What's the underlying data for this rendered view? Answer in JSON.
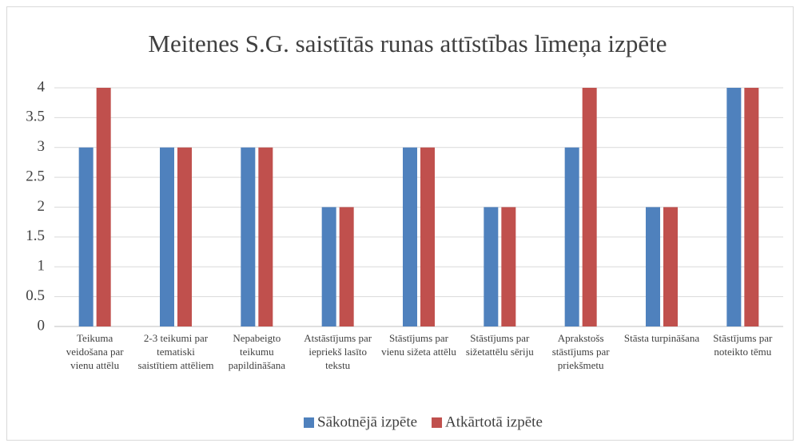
{
  "chart_data": {
    "type": "bar",
    "title": "Meitenes S.G. saistītās runas attīstības līmeņa izpēte",
    "categories": [
      "Teikuma veidošana par vienu attēlu",
      "2-3 teikumi par tematiski saistītiem attēliem",
      "Nepabeigto teikumu papildināšana",
      "Atstāstījums par iepriekš lasīto tekstu",
      "Stāstījums par vienu sižeta attēlu",
      "Stāstījums par sižetattēlu sēriju",
      "Aprakstošs stāstījums par priekšmetu",
      "Stāsta turpināšana",
      "Stāstījums par noteikto tēmu"
    ],
    "series": [
      {
        "name": "Sākotnējā izpēte",
        "color": "#4f81bd",
        "values": [
          3,
          3,
          3,
          2,
          3,
          2,
          3,
          2,
          4
        ]
      },
      {
        "name": "Atkārtotā izpēte",
        "color": "#c0504d",
        "values": [
          4,
          3,
          3,
          2,
          3,
          2,
          4,
          2,
          4
        ]
      }
    ],
    "ylim": [
      0,
      4
    ],
    "yticks": [
      0,
      0.5,
      1,
      1.5,
      2,
      2.5,
      3,
      3.5,
      4
    ],
    "grid": true,
    "legend": "bottom"
  }
}
